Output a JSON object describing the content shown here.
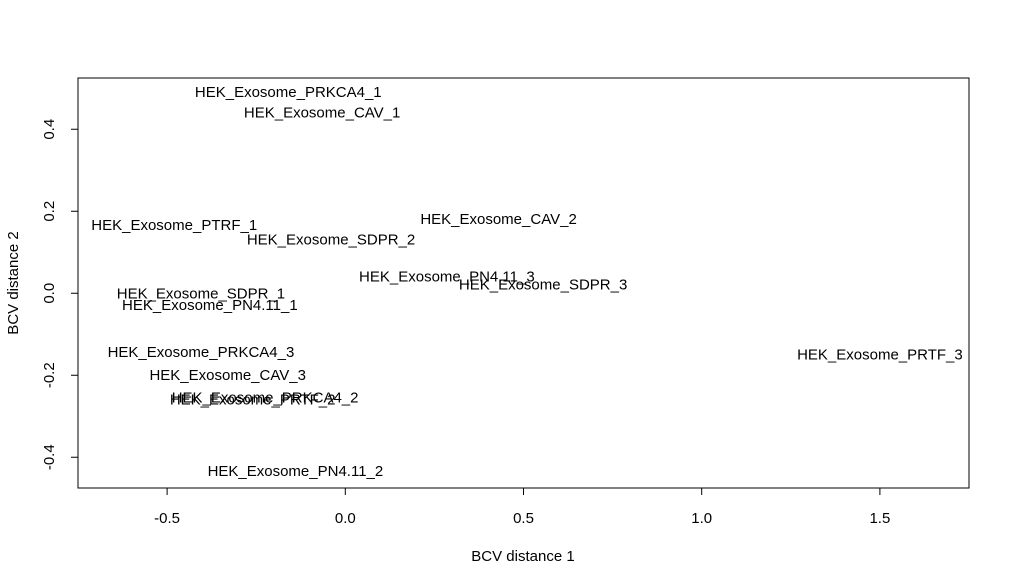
{
  "chart_data": {
    "type": "scatter",
    "title": "",
    "xlabel": "BCV distance 1",
    "ylabel": "BCV distance 2",
    "xlim": [
      -0.75,
      1.75
    ],
    "ylim": [
      -0.475,
      0.525
    ],
    "x_ticks": [
      -0.5,
      0.0,
      0.5,
      1.0,
      1.5
    ],
    "x_tick_labels": [
      "-0.5",
      "0.0",
      "0.5",
      "1.0",
      "1.5"
    ],
    "y_ticks": [
      -0.4,
      -0.2,
      0.0,
      0.2,
      0.4
    ],
    "y_tick_labels": [
      "-0.4",
      "-0.2",
      "0.0",
      "0.2",
      "0.4"
    ],
    "grid": false,
    "legend": "none",
    "points": [
      {
        "label": "HEK_Exosome_PRKCA4_1",
        "x": -0.16,
        "y": 0.49
      },
      {
        "label": "HEK_Exosome_CAV_1",
        "x": -0.065,
        "y": 0.44
      },
      {
        "label": "HEK_Exosome_CAV_2",
        "x": 0.43,
        "y": 0.18
      },
      {
        "label": "HEK_Exosome_PTRF_1",
        "x": -0.48,
        "y": 0.165
      },
      {
        "label": "HEK_Exosome_SDPR_2",
        "x": -0.04,
        "y": 0.13
      },
      {
        "label": "HEK_Exosome_PN4.11_3",
        "x": 0.285,
        "y": 0.04
      },
      {
        "label": "HEK_Exosome_SDPR_3",
        "x": 0.555,
        "y": 0.02
      },
      {
        "label": "HEK_Exosome_SDPR_1",
        "x": -0.405,
        "y": -0.002
      },
      {
        "label": "HEK_Exosome_PN4.11_1",
        "x": -0.38,
        "y": -0.03
      },
      {
        "label": "HEK_Exosome_PRKCA4_3",
        "x": -0.405,
        "y": -0.145
      },
      {
        "label": "HEK_Exosome_PRTF_3",
        "x": 1.5,
        "y": -0.15
      },
      {
        "label": "HEK_Exosome_CAV_3",
        "x": -0.33,
        "y": -0.2
      },
      {
        "label": "HEK_Exosome_PRKCA4_2",
        "x": -0.225,
        "y": -0.255
      },
      {
        "label": "HEK_Exosome_PRTF_2",
        "x": -0.26,
        "y": -0.26
      },
      {
        "label": "HEK_Exosome_PN4.11_2",
        "x": -0.14,
        "y": -0.435
      }
    ]
  }
}
